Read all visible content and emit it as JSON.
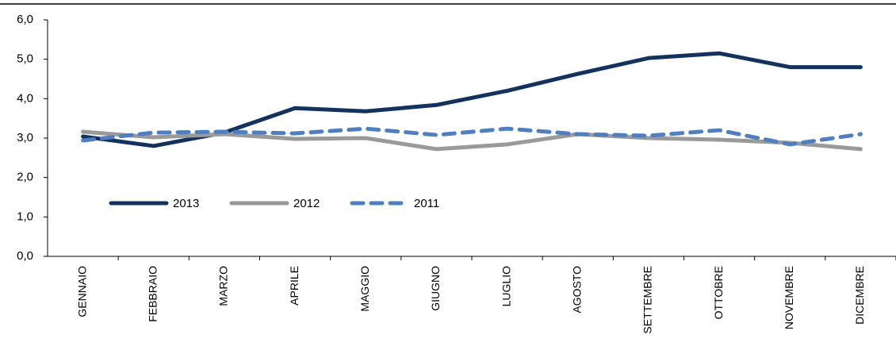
{
  "chart_data": {
    "type": "line",
    "categories": [
      "GENNAIO",
      "FEBBRAIO",
      "MARZO",
      "APRILE",
      "MAGGIO",
      "GIUGNO",
      "LUGLIO",
      "AGOSTO",
      "SETTEMBRE",
      "OTTOBRE",
      "NOVEMBRE",
      "DICEMBRE"
    ],
    "series": [
      {
        "name": "2013",
        "color": "#13325e",
        "dash": false,
        "values": [
          3.04,
          2.8,
          3.14,
          3.76,
          3.68,
          3.84,
          4.2,
          4.63,
          5.03,
          5.15,
          4.8,
          4.8
        ]
      },
      {
        "name": "2012",
        "color": "#9a9a9a",
        "dash": false,
        "values": [
          3.16,
          3.02,
          3.1,
          2.98,
          3.0,
          2.72,
          2.84,
          3.1,
          3.0,
          2.96,
          2.88,
          2.72
        ]
      },
      {
        "name": "2011",
        "color": "#4f7fc0",
        "dash": true,
        "values": [
          2.94,
          3.14,
          3.16,
          3.12,
          3.24,
          3.08,
          3.24,
          3.1,
          3.06,
          3.2,
          2.84,
          3.1
        ]
      }
    ],
    "ylim": [
      0,
      6
    ],
    "yticks": [
      {
        "value": 0,
        "label": "0,0"
      },
      {
        "value": 1,
        "label": "1,0"
      },
      {
        "value": 2,
        "label": "2,0"
      },
      {
        "value": 3,
        "label": "3,0"
      },
      {
        "value": 4,
        "label": "4,0"
      },
      {
        "value": 5,
        "label": "5,0"
      },
      {
        "value": 6,
        "label": "6,0"
      }
    ],
    "grid": false,
    "legend": "lower left"
  }
}
